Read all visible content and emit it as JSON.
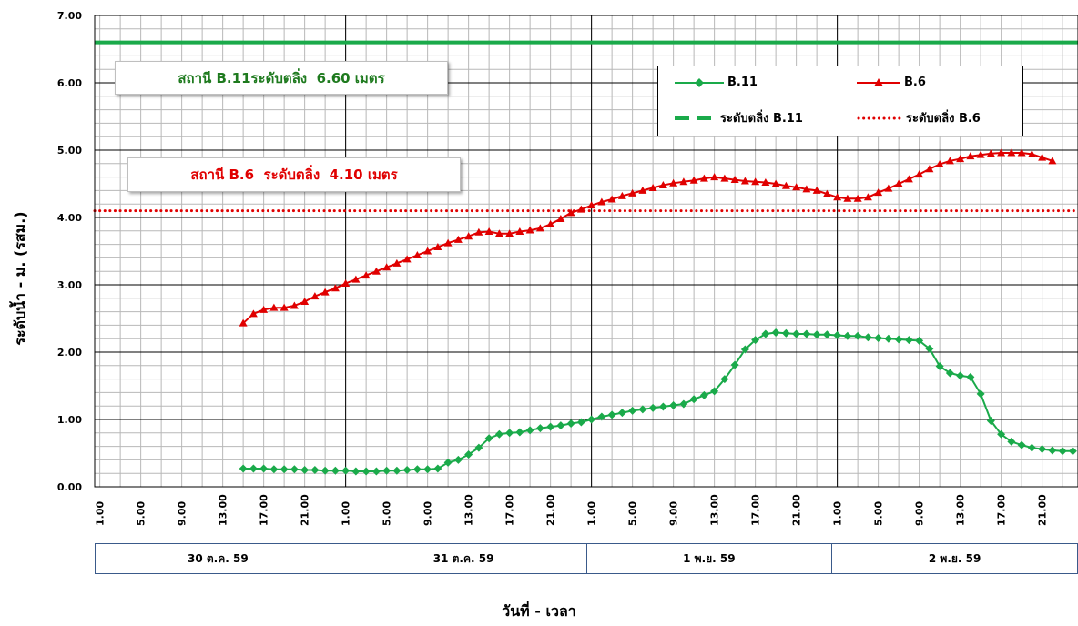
{
  "chart_data": {
    "type": "line",
    "ylabel": "ระดับน้ำ  -  ม. (รสม.)",
    "xlabel": "วันที่ - เวลา",
    "ylim": [
      0,
      7
    ],
    "yticks": [
      "0.00",
      "1.00",
      "2.00",
      "3.00",
      "4.00",
      "5.00",
      "6.00",
      "7.00"
    ],
    "xtick_labels": [
      "1.00",
      "5.00",
      "9.00",
      "13.00",
      "17.00",
      "21.00",
      "1.00",
      "5.00",
      "9.00",
      "13.00",
      "17.00",
      "21.00",
      "1.00",
      "5.00",
      "9.00",
      "13.00",
      "17.00",
      "21.00",
      "1.00",
      "5.00",
      "9.00",
      "13.00",
      "17.00",
      "21.00"
    ],
    "x_unit": "hour index from 30 ต.ค. 59 01.00, 2-hour steps",
    "days": [
      "30 ต.ค. 59",
      "31 ต.ค. 59",
      "1 พ.ย. 59",
      "2  พ.ย. 59"
    ],
    "grid": true,
    "series": [
      {
        "name": "B.11",
        "color": "#1aaa4a",
        "marker": "diamond",
        "start_hour": 15,
        "values": [
          0.27,
          0.27,
          0.27,
          0.26,
          0.26,
          0.26,
          0.25,
          0.25,
          0.24,
          0.24,
          0.24,
          0.23,
          0.23,
          0.23,
          0.24,
          0.24,
          0.25,
          0.26,
          0.26,
          0.27,
          0.36,
          0.4,
          0.48,
          0.58,
          0.72,
          0.78,
          0.8,
          0.81,
          0.84,
          0.87,
          0.89,
          0.91,
          0.94,
          0.96,
          1.0,
          1.04,
          1.07,
          1.1,
          1.13,
          1.15,
          1.17,
          1.19,
          1.21,
          1.23,
          1.3,
          1.36,
          1.42,
          1.6,
          1.81,
          2.04,
          2.18,
          2.27,
          2.29,
          2.28,
          2.27,
          2.27,
          2.26,
          2.26,
          2.25,
          2.24,
          2.24,
          2.22,
          2.21,
          2.2,
          2.19,
          2.18,
          2.17,
          2.05,
          1.79,
          1.69,
          1.65,
          1.63,
          1.38,
          0.98,
          0.78,
          0.67,
          0.62,
          0.58,
          0.56,
          0.54,
          0.53,
          0.53
        ]
      },
      {
        "name": "B.6",
        "color": "#e00000",
        "marker": "triangle",
        "start_hour": 15,
        "values": [
          2.43,
          2.57,
          2.63,
          2.66,
          2.66,
          2.69,
          2.75,
          2.83,
          2.89,
          2.95,
          3.02,
          3.08,
          3.14,
          3.2,
          3.26,
          3.32,
          3.38,
          3.44,
          3.5,
          3.56,
          3.62,
          3.67,
          3.72,
          3.78,
          3.79,
          3.76,
          3.76,
          3.79,
          3.81,
          3.84,
          3.9,
          3.98,
          4.07,
          4.12,
          4.18,
          4.23,
          4.27,
          4.32,
          4.36,
          4.4,
          4.44,
          4.48,
          4.51,
          4.53,
          4.55,
          4.58,
          4.6,
          4.58,
          4.56,
          4.54,
          4.53,
          4.52,
          4.5,
          4.47,
          4.45,
          4.42,
          4.4,
          4.35,
          4.3,
          4.28,
          4.28,
          4.3,
          4.37,
          4.43,
          4.5,
          4.57,
          4.64,
          4.72,
          4.79,
          4.84,
          4.87,
          4.91,
          4.93,
          4.95,
          4.96,
          4.96,
          4.96,
          4.94,
          4.89,
          4.84
        ]
      }
    ],
    "reference_lines": [
      {
        "name": "ระดับตลิ่ง B.11",
        "value": 6.6,
        "color": "#1aaa4a",
        "style": "dashed"
      },
      {
        "name": "ระดับตลิ่ง B.6",
        "value": 4.1,
        "color": "#e00000",
        "style": "dotted"
      }
    ],
    "annotations": {
      "b11": "สถานี B.11ระดับตลิ่ง  6.60 เมตร",
      "b6": "สถานี B.6  ระดับตลิ่ง  4.10 เมตร"
    },
    "legend": {
      "position": "top-right",
      "b11": "B.11",
      "b6": "B.6",
      "bank_b11": "ระดับตลิ่ง B.11",
      "bank_b6": "ระดับตลิ่ง B.6"
    }
  }
}
